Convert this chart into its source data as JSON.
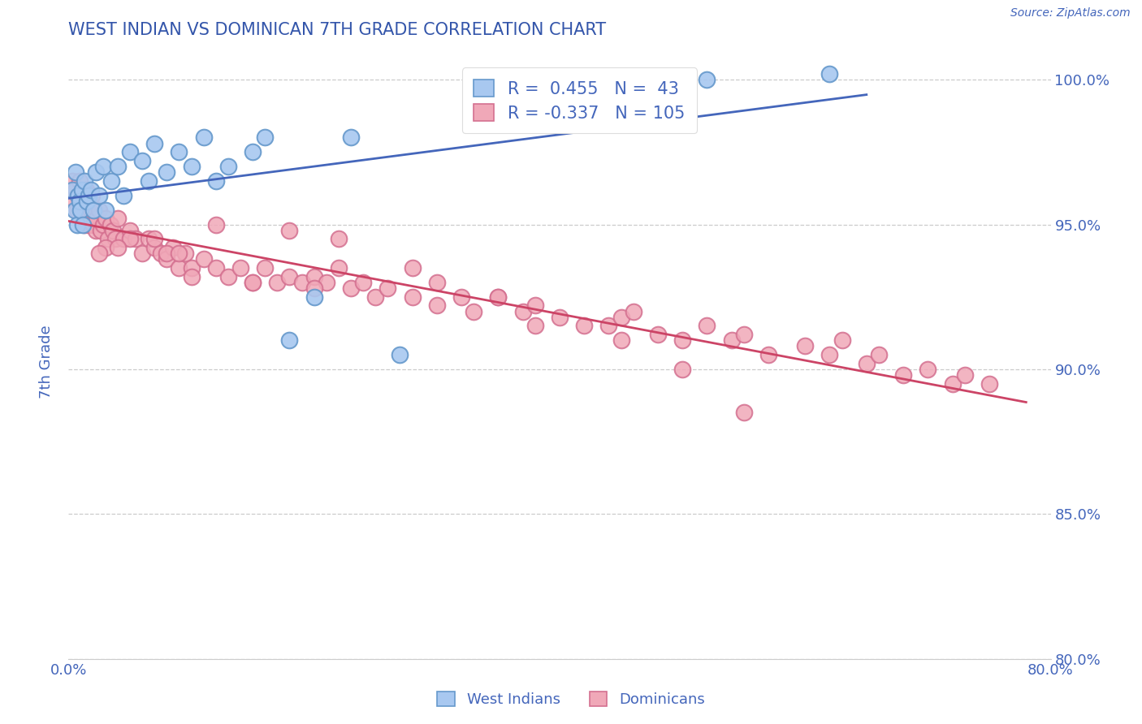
{
  "title": "WEST INDIAN VS DOMINICAN 7TH GRADE CORRELATION CHART",
  "source": "Source: ZipAtlas.com",
  "ylabel": "7th Grade",
  "xlim": [
    0.0,
    80.0
  ],
  "ylim": [
    80.0,
    100.5
  ],
  "y_ticks": [
    80.0,
    85.0,
    90.0,
    95.0,
    100.0
  ],
  "blue_R": 0.455,
  "blue_N": 43,
  "pink_R": -0.337,
  "pink_N": 105,
  "blue_color": "#a8c8f0",
  "pink_color": "#f0a8b8",
  "blue_edge_color": "#6699cc",
  "pink_edge_color": "#d47090",
  "blue_line_color": "#4466bb",
  "pink_line_color": "#cc4466",
  "legend_label_blue": "West Indians",
  "legend_label_pink": "Dominicans",
  "title_color": "#3355aa",
  "axis_color": "#4466bb",
  "grid_color": "#cccccc",
  "background_color": "#ffffff",
  "blue_x": [
    0.3,
    0.5,
    0.6,
    0.7,
    0.8,
    0.9,
    1.0,
    1.1,
    1.2,
    1.3,
    1.5,
    1.6,
    1.8,
    2.0,
    2.2,
    2.5,
    2.8,
    3.0,
    3.5,
    4.0,
    4.5,
    5.0,
    6.0,
    6.5,
    7.0,
    8.0,
    9.0,
    10.0,
    11.0,
    12.0,
    13.0,
    15.0,
    16.0,
    18.0,
    20.0,
    23.0,
    27.0,
    33.0,
    38.0,
    42.0,
    47.0,
    52.0,
    62.0
  ],
  "blue_y": [
    96.2,
    95.5,
    96.8,
    95.0,
    96.0,
    95.8,
    95.5,
    96.2,
    95.0,
    96.5,
    95.8,
    96.0,
    96.2,
    95.5,
    96.8,
    96.0,
    97.0,
    95.5,
    96.5,
    97.0,
    96.0,
    97.5,
    97.2,
    96.5,
    97.8,
    96.8,
    97.5,
    97.0,
    98.0,
    96.5,
    97.0,
    97.5,
    98.0,
    91.0,
    92.5,
    98.0,
    90.5,
    98.5,
    99.2,
    98.8,
    99.5,
    100.0,
    100.2
  ],
  "pink_x": [
    0.3,
    0.5,
    0.6,
    0.7,
    0.8,
    0.9,
    1.0,
    1.1,
    1.2,
    1.3,
    1.4,
    1.5,
    1.6,
    1.7,
    1.8,
    1.9,
    2.0,
    2.1,
    2.2,
    2.3,
    2.5,
    2.6,
    2.8,
    3.0,
    3.2,
    3.4,
    3.6,
    3.8,
    4.0,
    4.5,
    5.0,
    5.5,
    6.0,
    6.5,
    7.0,
    7.5,
    8.0,
    8.5,
    9.0,
    9.5,
    10.0,
    11.0,
    12.0,
    13.0,
    14.0,
    15.0,
    16.0,
    17.0,
    18.0,
    19.0,
    20.0,
    21.0,
    22.0,
    23.0,
    24.0,
    25.0,
    26.0,
    28.0,
    30.0,
    32.0,
    33.0,
    35.0,
    37.0,
    38.0,
    40.0,
    42.0,
    44.0,
    45.0,
    46.0,
    48.0,
    50.0,
    52.0,
    54.0,
    55.0,
    57.0,
    60.0,
    62.0,
    63.0,
    65.0,
    66.0,
    68.0,
    70.0,
    72.0,
    73.0,
    75.0,
    55.0,
    28.0,
    30.0,
    35.0,
    20.0,
    15.0,
    10.0,
    8.0,
    5.0,
    3.0,
    2.5,
    4.0,
    7.0,
    9.0,
    50.0,
    45.0,
    12.0,
    18.0,
    22.0,
    38.0
  ],
  "pink_y": [
    96.5,
    95.8,
    96.2,
    95.5,
    96.0,
    96.5,
    96.0,
    95.8,
    95.5,
    95.0,
    96.2,
    95.5,
    95.0,
    95.8,
    95.5,
    96.0,
    95.0,
    95.5,
    94.8,
    95.2,
    95.5,
    94.8,
    95.0,
    95.2,
    94.5,
    95.0,
    94.8,
    94.5,
    95.2,
    94.5,
    94.8,
    94.5,
    94.0,
    94.5,
    94.2,
    94.0,
    93.8,
    94.2,
    93.5,
    94.0,
    93.5,
    93.8,
    93.5,
    93.2,
    93.5,
    93.0,
    93.5,
    93.0,
    93.2,
    93.0,
    93.2,
    93.0,
    93.5,
    92.8,
    93.0,
    92.5,
    92.8,
    92.5,
    92.2,
    92.5,
    92.0,
    92.5,
    92.0,
    92.2,
    91.8,
    91.5,
    91.5,
    91.8,
    92.0,
    91.2,
    91.0,
    91.5,
    91.0,
    91.2,
    90.5,
    90.8,
    90.5,
    91.0,
    90.2,
    90.5,
    89.8,
    90.0,
    89.5,
    89.8,
    89.5,
    88.5,
    93.5,
    93.0,
    92.5,
    92.8,
    93.0,
    93.2,
    94.0,
    94.5,
    94.2,
    94.0,
    94.2,
    94.5,
    94.0,
    90.0,
    91.0,
    95.0,
    94.8,
    94.5,
    91.5
  ]
}
